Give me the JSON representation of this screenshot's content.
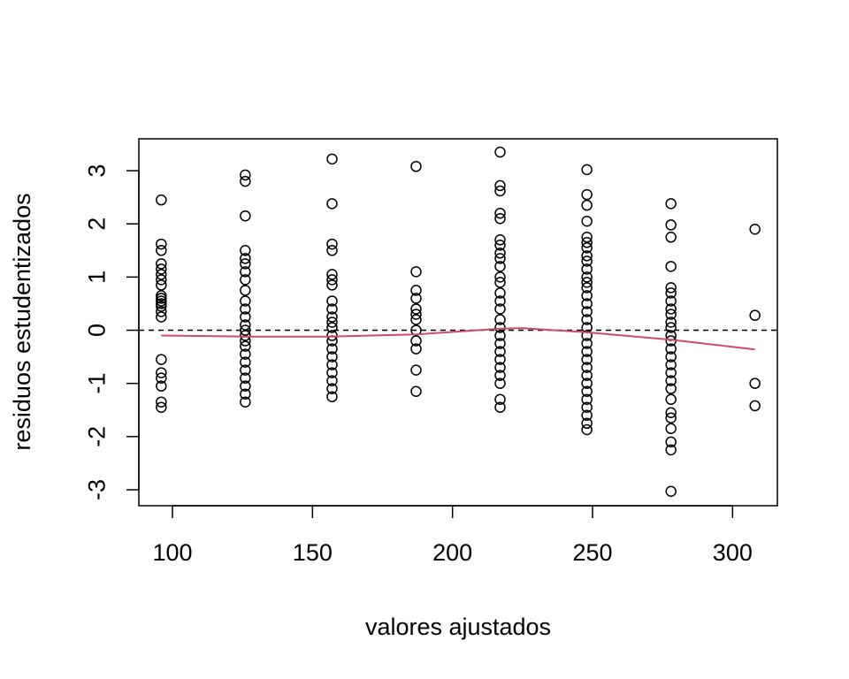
{
  "chart_data": {
    "type": "scatter",
    "title": "",
    "xlabel": "valores ajustados",
    "ylabel": "residuos estudentizados",
    "xlim": [
      88,
      316
    ],
    "ylim": [
      -3.3,
      3.6
    ],
    "xticks": [
      100,
      150,
      200,
      250,
      300
    ],
    "yticks": [
      -3,
      -2,
      -1,
      0,
      1,
      2,
      3
    ],
    "grid": false,
    "reference_line": {
      "y": 0,
      "style": "dashed",
      "color": "#000000"
    },
    "smooth_line": {
      "color": "#d14a6a",
      "points": [
        [
          96,
          -0.1
        ],
        [
          126,
          -0.12
        ],
        [
          157,
          -0.12
        ],
        [
          187,
          -0.08
        ],
        [
          217,
          0.03
        ],
        [
          225,
          0.04
        ],
        [
          248,
          -0.04
        ],
        [
          278,
          -0.18
        ],
        [
          308,
          -0.36
        ]
      ]
    },
    "series": [
      {
        "marker": "open-circle",
        "color": "#000000",
        "points": [
          [
            96,
            2.45
          ],
          [
            96,
            1.62
          ],
          [
            96,
            1.5
          ],
          [
            96,
            1.25
          ],
          [
            96,
            1.15
          ],
          [
            96,
            1.05
          ],
          [
            96,
            0.95
          ],
          [
            96,
            0.85
          ],
          [
            96,
            0.65
          ],
          [
            96,
            0.6
          ],
          [
            96,
            0.55
          ],
          [
            96,
            0.5
          ],
          [
            96,
            0.45
          ],
          [
            96,
            0.35
          ],
          [
            96,
            0.25
          ],
          [
            96,
            -0.55
          ],
          [
            96,
            -0.8
          ],
          [
            96,
            -0.9
          ],
          [
            96,
            -1.05
          ],
          [
            96,
            -1.35
          ],
          [
            96,
            -1.45
          ],
          [
            126,
            2.92
          ],
          [
            126,
            2.8
          ],
          [
            126,
            2.15
          ],
          [
            126,
            1.5
          ],
          [
            126,
            1.35
          ],
          [
            126,
            1.25
          ],
          [
            126,
            1.1
          ],
          [
            126,
            0.95
          ],
          [
            126,
            0.75
          ],
          [
            126,
            0.55
          ],
          [
            126,
            0.4
          ],
          [
            126,
            0.25
          ],
          [
            126,
            0.1
          ],
          [
            126,
            0.0
          ],
          [
            126,
            -0.1
          ],
          [
            126,
            -0.2
          ],
          [
            126,
            -0.3
          ],
          [
            126,
            -0.45
          ],
          [
            126,
            -0.6
          ],
          [
            126,
            -0.75
          ],
          [
            126,
            -0.9
          ],
          [
            126,
            -1.05
          ],
          [
            126,
            -1.2
          ],
          [
            126,
            -1.35
          ],
          [
            157,
            3.22
          ],
          [
            157,
            2.38
          ],
          [
            157,
            1.62
          ],
          [
            157,
            1.5
          ],
          [
            157,
            1.05
          ],
          [
            157,
            0.95
          ],
          [
            157,
            0.85
          ],
          [
            157,
            0.55
          ],
          [
            157,
            0.4
          ],
          [
            157,
            0.25
          ],
          [
            157,
            0.15
          ],
          [
            157,
            0.05
          ],
          [
            157,
            -0.1
          ],
          [
            157,
            -0.2
          ],
          [
            157,
            -0.35
          ],
          [
            157,
            -0.5
          ],
          [
            157,
            -0.65
          ],
          [
            157,
            -0.8
          ],
          [
            157,
            -0.95
          ],
          [
            157,
            -1.1
          ],
          [
            157,
            -1.25
          ],
          [
            187,
            3.08
          ],
          [
            187,
            1.1
          ],
          [
            187,
            0.75
          ],
          [
            187,
            0.6
          ],
          [
            187,
            0.4
          ],
          [
            187,
            0.3
          ],
          [
            187,
            0.2
          ],
          [
            187,
            0.0
          ],
          [
            187,
            -0.2
          ],
          [
            187,
            -0.35
          ],
          [
            187,
            -0.75
          ],
          [
            187,
            -1.15
          ],
          [
            217,
            3.35
          ],
          [
            217,
            2.72
          ],
          [
            217,
            2.62
          ],
          [
            217,
            2.2
          ],
          [
            217,
            2.1
          ],
          [
            217,
            1.7
          ],
          [
            217,
            1.6
          ],
          [
            217,
            1.45
          ],
          [
            217,
            1.35
          ],
          [
            217,
            1.2
          ],
          [
            217,
            1.0
          ],
          [
            217,
            0.9
          ],
          [
            217,
            0.7
          ],
          [
            217,
            0.55
          ],
          [
            217,
            0.4
          ],
          [
            217,
            0.2
          ],
          [
            217,
            0.05
          ],
          [
            217,
            -0.1
          ],
          [
            217,
            -0.25
          ],
          [
            217,
            -0.4
          ],
          [
            217,
            -0.55
          ],
          [
            217,
            -0.7
          ],
          [
            217,
            -0.85
          ],
          [
            217,
            -1.0
          ],
          [
            217,
            -1.3
          ],
          [
            217,
            -1.45
          ],
          [
            248,
            3.02
          ],
          [
            248,
            2.55
          ],
          [
            248,
            2.35
          ],
          [
            248,
            2.05
          ],
          [
            248,
            1.75
          ],
          [
            248,
            1.65
          ],
          [
            248,
            1.55
          ],
          [
            248,
            1.4
          ],
          [
            248,
            1.3
          ],
          [
            248,
            1.15
          ],
          [
            248,
            1.0
          ],
          [
            248,
            0.9
          ],
          [
            248,
            0.8
          ],
          [
            248,
            0.65
          ],
          [
            248,
            0.5
          ],
          [
            248,
            0.35
          ],
          [
            248,
            0.2
          ],
          [
            248,
            0.05
          ],
          [
            248,
            -0.1
          ],
          [
            248,
            -0.25
          ],
          [
            248,
            -0.4
          ],
          [
            248,
            -0.55
          ],
          [
            248,
            -0.7
          ],
          [
            248,
            -0.85
          ],
          [
            248,
            -1.0
          ],
          [
            248,
            -1.15
          ],
          [
            248,
            -1.3
          ],
          [
            248,
            -1.45
          ],
          [
            248,
            -1.6
          ],
          [
            248,
            -1.75
          ],
          [
            248,
            -1.87
          ],
          [
            278,
            2.38
          ],
          [
            278,
            1.98
          ],
          [
            278,
            1.75
          ],
          [
            278,
            1.2
          ],
          [
            278,
            0.8
          ],
          [
            278,
            0.7
          ],
          [
            278,
            0.55
          ],
          [
            278,
            0.4
          ],
          [
            278,
            0.3
          ],
          [
            278,
            0.15
          ],
          [
            278,
            0.05
          ],
          [
            278,
            -0.1
          ],
          [
            278,
            -0.2
          ],
          [
            278,
            -0.35
          ],
          [
            278,
            -0.5
          ],
          [
            278,
            -0.65
          ],
          [
            278,
            -0.8
          ],
          [
            278,
            -0.95
          ],
          [
            278,
            -1.1
          ],
          [
            278,
            -1.3
          ],
          [
            278,
            -1.55
          ],
          [
            278,
            -1.65
          ],
          [
            278,
            -1.85
          ],
          [
            278,
            -2.1
          ],
          [
            278,
            -2.25
          ],
          [
            278,
            -3.03
          ],
          [
            308,
            1.9
          ],
          [
            308,
            0.28
          ],
          [
            308,
            -1.0
          ],
          [
            308,
            -1.42
          ]
        ]
      }
    ]
  }
}
